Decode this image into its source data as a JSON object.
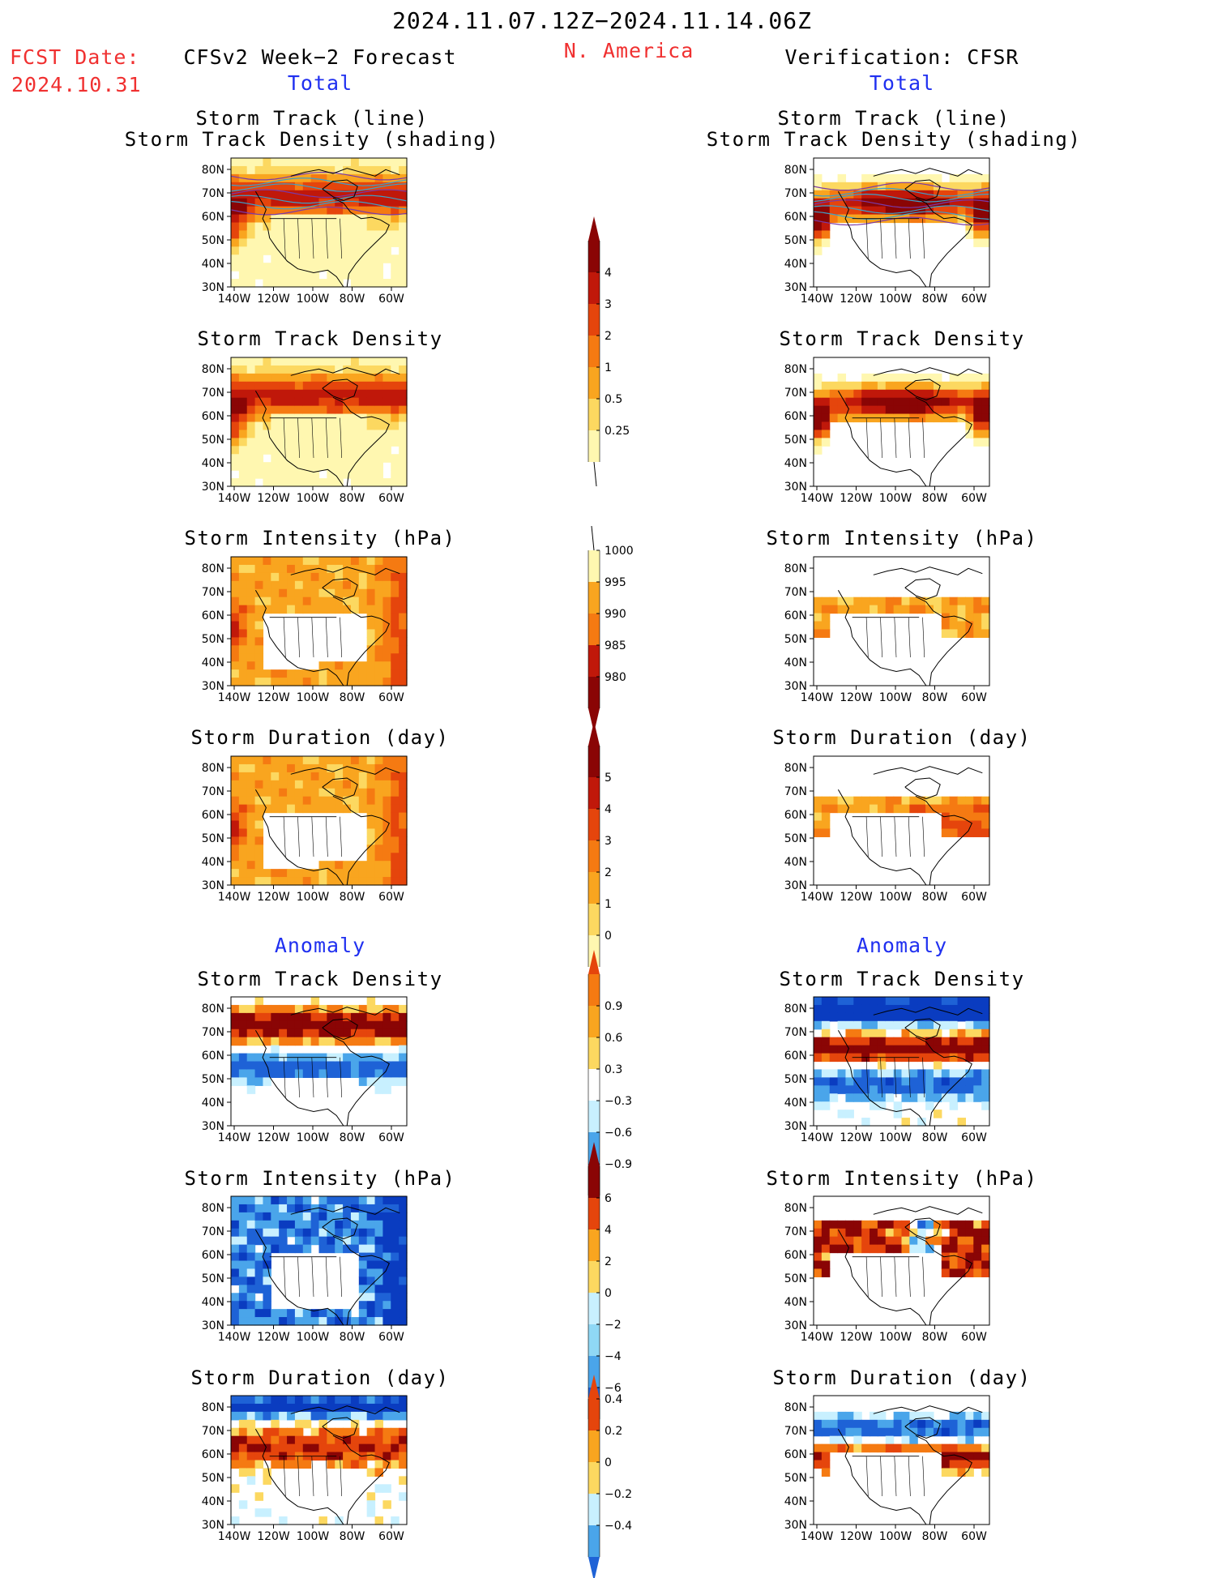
{
  "header": {
    "period": "2024.11.07.12Z−2024.11.14.06Z",
    "region": "N. America",
    "fcst_label": "FCST Date:",
    "fcst_date": "2024.10.31",
    "left_title": "CFSv2 Week−2 Forecast",
    "right_title": "Verification: CFSR",
    "total_label": "Total",
    "anomaly_label": "Anomaly"
  },
  "panel_titles": {
    "track": [
      "Storm Track (line)",
      "Storm Track Density (shading)"
    ],
    "density": "Storm Track Density",
    "intensity": "Storm Intensity (hPa)",
    "duration": "Storm Duration (day)"
  },
  "axes": {
    "lat_ticks": [
      "80N",
      "70N",
      "60N",
      "50N",
      "40N",
      "30N"
    ],
    "lon_ticks": [
      "140W",
      "120W",
      "100W",
      "80W",
      "60W"
    ]
  },
  "colorbars": {
    "total_density": [
      "0.25",
      "0.5",
      "1",
      "2",
      "3",
      "4"
    ],
    "total_intensity": [
      "1000",
      "995",
      "990",
      "985",
      "980"
    ],
    "total_duration": [
      "0",
      "1",
      "2",
      "3",
      "4",
      "5"
    ],
    "anom_density": [
      "0.9",
      "0.6",
      "0.3",
      "−0.3",
      "−0.6",
      "−0.9"
    ],
    "anom_intensity": [
      "6",
      "4",
      "2",
      "0",
      "−2",
      "−4",
      "−6"
    ],
    "anom_duration": [
      "0.4",
      "0.2",
      "0",
      "−0.2",
      "−0.4"
    ]
  },
  "colors": {
    "warm": [
      "#fff7b0",
      "#fcd860",
      "#f9a51f",
      "#f57a12",
      "#e5450c",
      "#c0180a",
      "#8a0505"
    ],
    "cool": [
      "#c8f0ff",
      "#8fd8f5",
      "#4aa5ea",
      "#1e62d6",
      "#0a3cc0"
    ],
    "track_line": "#3da0c8"
  }
}
